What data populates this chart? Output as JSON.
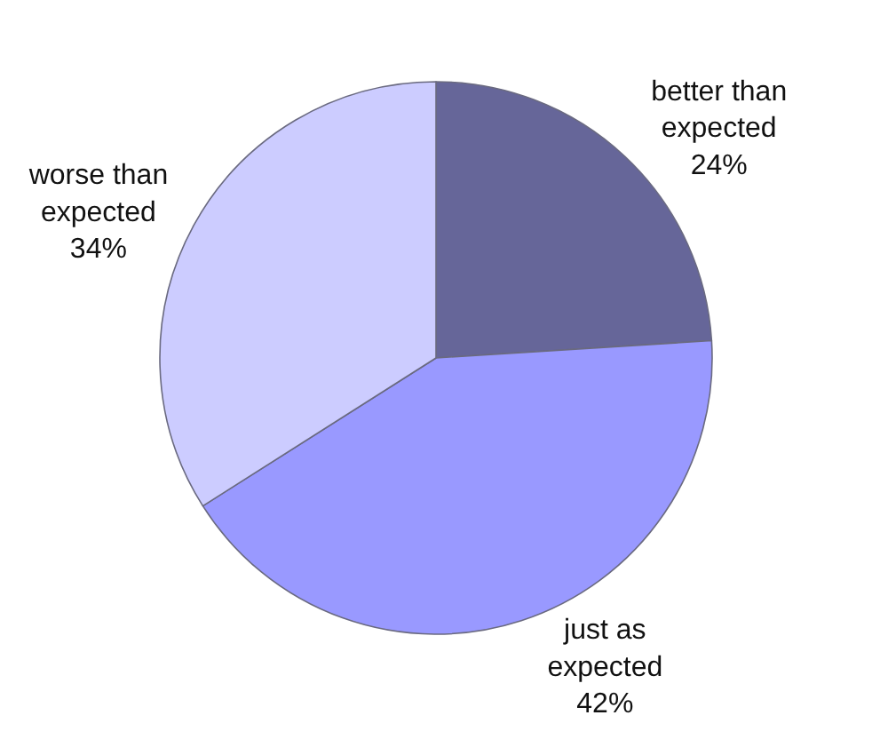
{
  "chart_data": {
    "type": "pie",
    "categories": [
      "better than expected",
      "just as expected",
      "worse than expected"
    ],
    "values": [
      24,
      42,
      34
    ],
    "value_labels": [
      "24%",
      "42%",
      "34%"
    ],
    "colors": [
      "#666699",
      "#9999ff",
      "#ccccff"
    ]
  }
}
